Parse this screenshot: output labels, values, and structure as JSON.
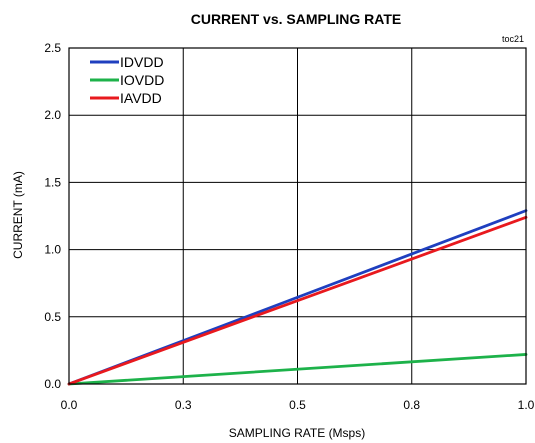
{
  "chart_data": {
    "type": "line",
    "title": "CURRENT vs. SAMPLING RATE",
    "note": "toc21",
    "xlabel": "SAMPLING RATE (Msps)",
    "ylabel": "CURRENT (mA)",
    "xlim": [
      0,
      1.0
    ],
    "ylim": [
      0,
      2.5
    ],
    "x_ticks": [
      0.0,
      0.25,
      0.5,
      0.75,
      1.0
    ],
    "x_tick_labels": [
      "0.0",
      "0.3",
      "0.5",
      "0.8",
      "1.0"
    ],
    "y_ticks": [
      0.0,
      0.5,
      1.0,
      1.5,
      2.0,
      2.5
    ],
    "y_tick_labels": [
      "0.0",
      "0.5",
      "1.0",
      "1.5",
      "2.0",
      "2.5"
    ],
    "grid": true,
    "legend_position": "top-left",
    "series": [
      {
        "name": "IDVDD",
        "color": "#1f3fbf",
        "x": [
          0.0,
          1.0
        ],
        "y": [
          0.0,
          1.29
        ]
      },
      {
        "name": "IOVDD",
        "color": "#1db24a",
        "x": [
          0.0,
          1.0
        ],
        "y": [
          0.0,
          0.22
        ]
      },
      {
        "name": "IAVDD",
        "color": "#e8191e",
        "x": [
          0.0,
          1.0
        ],
        "y": [
          0.0,
          1.24
        ]
      }
    ]
  }
}
